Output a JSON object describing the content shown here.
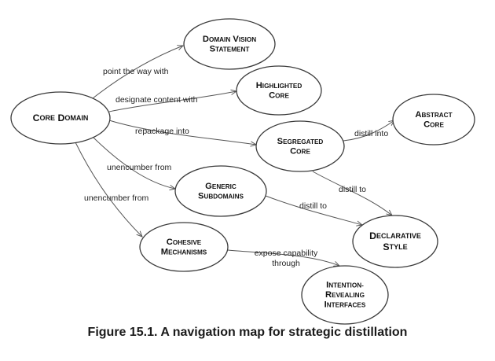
{
  "nodes": {
    "core_domain": [
      "Core Domain"
    ],
    "domain_vision": [
      "Domain Vision",
      "Statement"
    ],
    "highlighted_core": [
      "Highlighted",
      "Core"
    ],
    "segregated_core": [
      "Segregated",
      "Core"
    ],
    "abstract_core": [
      "Abstract",
      "Core"
    ],
    "generic_subdomains": [
      "Generic",
      "Subdomains"
    ],
    "declarative_style": [
      "Declarative",
      "Style"
    ],
    "cohesive_mechanisms": [
      "Cohesive",
      "Mechanisms"
    ],
    "intention_revealing": [
      "Intention-",
      "Revealing",
      "Interfaces"
    ]
  },
  "edges": {
    "point_the_way": "point the way with",
    "designate_content": "designate content with",
    "repackage_into": "repackage into",
    "unencumber_from_generic": "unencumber from",
    "unencumber_from_cohesive": "unencumber from",
    "distill_into": "distill into",
    "distill_to_segregated": "distill to",
    "distill_to_generic": "distill to",
    "expose_capability": [
      "expose capability",
      "through"
    ]
  },
  "caption": "Figure 15.1. A navigation map for strategic distillation"
}
